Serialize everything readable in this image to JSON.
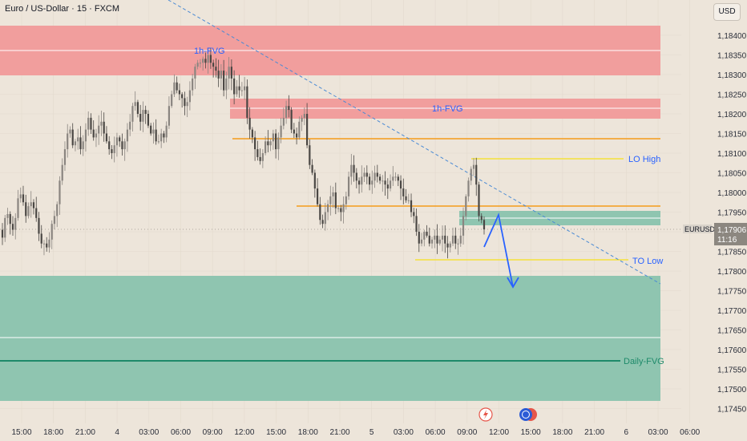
{
  "header": {
    "symbol_title": "Euro / US-Dollar · 15 · FXCM",
    "currency": "USD"
  },
  "colors": {
    "background": "#ede5da",
    "up_candle": "#8a8580",
    "down_candle": "#4a4744",
    "bearish_zone": "#f19a9a",
    "bullish_zone": "#8fc5b0",
    "orange_level": "#f59b1a",
    "yellow_level": "#f5e23a",
    "trendline": "#4a8ad4",
    "arrow": "#2962ff",
    "label_blue": "#2962ff"
  },
  "chart_data": {
    "type": "candlestick",
    "symbol": "EURUSD",
    "interval": "15",
    "ylim": [
      1.1744,
      1.1844
    ],
    "y_ticks": [
      "1,18400",
      "1,18350",
      "1,18300",
      "1,18250",
      "1,18200",
      "1,18150",
      "1,18100",
      "1,18050",
      "1,18000",
      "1,17950",
      "1,17900",
      "1,17850",
      "1,17800",
      "1,17750",
      "1,17700",
      "1,17650",
      "1,17600",
      "1,17550",
      "1,17500",
      "1,17450"
    ],
    "x_ticks": [
      "15:00",
      "18:00",
      "21:00",
      "4",
      "03:00",
      "06:00",
      "09:00",
      "12:00",
      "15:00",
      "18:00",
      "21:00",
      "5",
      "03:00",
      "06:00",
      "09:00",
      "12:00",
      "15:00",
      "18:00",
      "21:00",
      "6",
      "03:00",
      "06:00"
    ],
    "last_price": {
      "symbol": "EURUSD",
      "value": "1,17906",
      "countdown": "11:16"
    },
    "closes": [
      1.17885,
      1.17935,
      1.17945,
      1.1792,
      1.17905,
      1.17935,
      1.17985,
      1.17995,
      1.17975,
      1.1794,
      1.17965,
      1.17975,
      1.1796,
      1.17935,
      1.17895,
      1.1787,
      1.1787,
      1.1786,
      1.1788,
      1.1792,
      1.1794,
      1.1797,
      1.1803,
      1.1807,
      1.1811,
      1.1815,
      1.1816,
      1.1812,
      1.1813,
      1.1814,
      1.1811,
      1.1813,
      1.1816,
      1.1819,
      1.1816,
      1.1814,
      1.1815,
      1.1817,
      1.1818,
      1.1815,
      1.1813,
      1.1811,
      1.181,
      1.1812,
      1.1814,
      1.1813,
      1.1811,
      1.1813,
      1.1816,
      1.1818,
      1.1822,
      1.1823,
      1.182,
      1.1818,
      1.1821,
      1.182,
      1.1817,
      1.1815,
      1.1816,
      1.1813,
      1.1813,
      1.1815,
      1.1814,
      1.1817,
      1.1822,
      1.1825,
      1.1828,
      1.1826,
      1.1825,
      1.1824,
      1.1822,
      1.1823,
      1.1826,
      1.1829,
      1.1832,
      1.1833,
      1.1833,
      1.1834,
      1.1833,
      1.1835,
      1.1833,
      1.1832,
      1.1831,
      1.1829,
      1.1831,
      1.1826,
      1.1829,
      1.1832,
      1.1829,
      1.1825,
      1.1827,
      1.1826,
      1.1826,
      1.1827,
      1.1819,
      1.1816,
      1.1814,
      1.1811,
      1.1809,
      1.1808,
      1.181,
      1.1813,
      1.1812,
      1.1813,
      1.1815,
      1.1811,
      1.1814,
      1.1817,
      1.1819,
      1.1822,
      1.1821,
      1.1816,
      1.1815,
      1.1814,
      1.1818,
      1.1819,
      1.182,
      1.1812,
      1.1807,
      1.1805,
      1.1801,
      1.1797,
      1.1793,
      1.1792,
      1.1795,
      1.1797,
      1.1799,
      1.18,
      1.1796,
      1.1796,
      1.1795,
      1.1797,
      1.1799,
      1.1804,
      1.1807,
      1.1805,
      1.1803,
      1.1802,
      1.1804,
      1.1805,
      1.1804,
      1.1802,
      1.1803,
      1.1805,
      1.1804,
      1.1803,
      1.1803,
      1.1802,
      1.1801,
      1.1803,
      1.1804,
      1.1804,
      1.1803,
      1.1801,
      1.1799,
      1.1798,
      1.1798,
      1.1795,
      1.1794,
      1.179,
      1.1787,
      1.1788,
      1.179,
      1.1789,
      1.1787,
      1.1788,
      1.1789,
      1.1787,
      1.1788,
      1.1789,
      1.1787,
      1.1786,
      1.1787,
      1.1789,
      1.1787,
      1.1787,
      1.1789,
      1.1794,
      1.1799,
      1.1803,
      1.1806,
      1.1807,
      1.1802,
      1.1794,
      1.1793,
      1.17906
    ]
  },
  "annotations": {
    "fvg_1h_top_label": "1h-FVG",
    "fvg_1h_mid_label": "1h-FVG",
    "lo_high_label": "LO High",
    "to_low_label": "TO Low",
    "daily_fvg_label": "Daily-FVG"
  }
}
